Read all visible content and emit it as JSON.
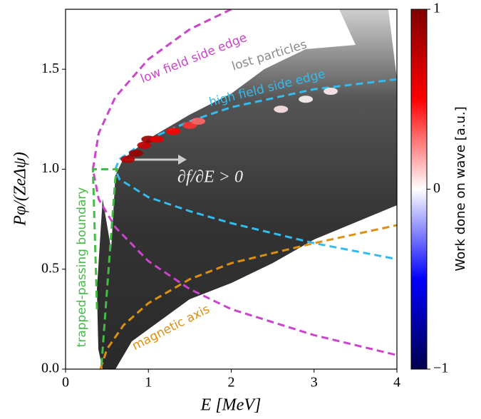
{
  "chart_data": {
    "type": "line",
    "xlabel": "E [MeV]",
    "ylabel": "Pφ/(ZeΔψ)",
    "xlim": [
      0,
      4
    ],
    "ylim": [
      0,
      1.8
    ],
    "xticks": [
      0,
      1,
      2,
      3,
      4
    ],
    "yticks": [
      {
        "value": 0,
        "label": "0.0"
      },
      {
        "value": 0.5,
        "label": "0.5"
      },
      {
        "value": 1.0,
        "label": "1.0"
      },
      {
        "value": 1.5,
        "label": "1.5"
      }
    ],
    "annotations": [
      "lost particles",
      "∂f/∂E > 0"
    ],
    "colorbar": {
      "label": "Work done on wave [a.u.]",
      "lim": [
        -1,
        1
      ],
      "ticks": [
        1,
        0,
        {
          "value": -1,
          "label": "−1"
        }
      ]
    },
    "series": [
      {
        "name": "low field side edge",
        "color": "#cc44cc",
        "x": [
          2.0,
          1.5,
          1.0,
          0.6,
          0.4,
          0.33,
          0.4,
          0.6,
          1.0,
          1.5,
          2.0,
          3.0,
          4.0
        ],
        "values": [
          1.8,
          1.7,
          1.55,
          1.36,
          1.18,
          1.0,
          0.85,
          0.71,
          0.54,
          0.4,
          0.3,
          0.17,
          0.07
        ]
      },
      {
        "name": "high field side edge",
        "color": "#33bbee",
        "x": [
          4.0,
          3.0,
          2.0,
          1.5,
          1.0,
          0.65,
          0.6,
          0.65,
          1.0,
          1.5,
          2.0,
          3.0,
          4.0
        ],
        "values": [
          1.45,
          1.4,
          1.31,
          1.24,
          1.15,
          1.05,
          1.0,
          0.95,
          0.86,
          0.79,
          0.73,
          0.63,
          0.55
        ]
      },
      {
        "name": "magnetic axis",
        "color": "#dd8f10",
        "x": [
          0.42,
          0.5,
          0.7,
          1.0,
          1.5,
          2.0,
          3.0,
          4.0
        ],
        "values": [
          0,
          0.1,
          0.22,
          0.33,
          0.45,
          0.53,
          0.63,
          0.72
        ]
      },
      {
        "name": "trapped-passing boundary",
        "color": "#44bb44",
        "x": [
          0.38,
          0.33,
          0.62,
          0.6,
          0.43
        ],
        "values": [
          0.3,
          1.0,
          1.0,
          0.95,
          0.0
        ]
      },
      {
        "type": "scatter",
        "x": [
          0.75,
          0.85,
          0.95,
          1.0,
          1.1,
          1.3,
          1.5,
          1.6,
          2.6,
          2.9,
          3.2
        ],
        "values": [
          1.05,
          1.08,
          1.12,
          1.15,
          1.15,
          1.19,
          1.22,
          1.24,
          1.3,
          1.35,
          1.39
        ],
        "c": [
          0.8,
          0.9,
          0.7,
          0.9,
          0.6,
          0.5,
          0.4,
          0.3,
          0.05,
          0.02,
          0.03
        ]
      }
    ]
  }
}
